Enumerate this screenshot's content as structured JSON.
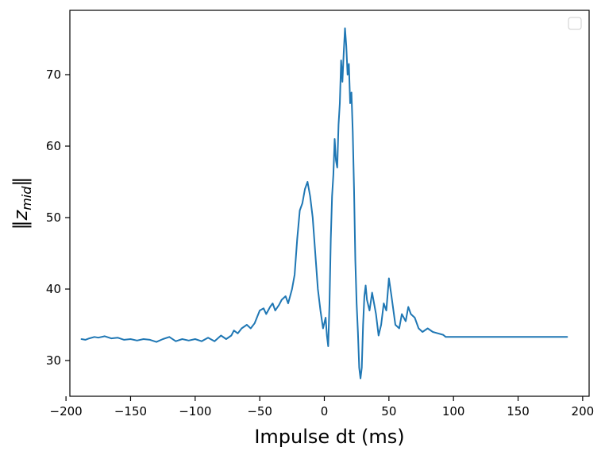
{
  "chart_data": {
    "type": "line",
    "title": "",
    "xlabel": "Impulse dt (ms)",
    "ylabel_main": "z",
    "ylabel_sub": "mid",
    "xlim": [
      -197,
      205
    ],
    "ylim": [
      25,
      79
    ],
    "xticks": [
      -200,
      -150,
      -100,
      -50,
      0,
      50,
      100,
      150,
      200
    ],
    "xtick_labels": [
      "−200",
      "−150",
      "−100",
      "−50",
      "0",
      "50",
      "100",
      "150",
      "200"
    ],
    "yticks": [
      30,
      40,
      50,
      60,
      70
    ],
    "ytick_labels": [
      "30",
      "40",
      "50",
      "60",
      "70"
    ],
    "grid": false,
    "legend": "top-right, empty",
    "line_color": "#1f77b4",
    "series": [
      {
        "x": [
          -188,
          -185,
          -182,
          -178,
          -175,
          -170,
          -165,
          -160,
          -155,
          -150,
          -145,
          -140,
          -135,
          -130,
          -125,
          -120,
          -115,
          -110,
          -105,
          -100,
          -95,
          -90,
          -85,
          -80,
          -76,
          -72,
          -70,
          -67,
          -64,
          -60,
          -57,
          -54,
          -50,
          -47,
          -45,
          -42,
          -40,
          -38,
          -35,
          -33,
          -30,
          -28,
          -25,
          -23,
          -21,
          -19,
          -17,
          -15,
          -13,
          -11,
          -9,
          -7,
          -5,
          -3,
          -1,
          1,
          2,
          3,
          4,
          5,
          6,
          7,
          8,
          9,
          10,
          11,
          12,
          13,
          14,
          15,
          16,
          17,
          18,
          19,
          20,
          21,
          22,
          23,
          24,
          25,
          26,
          27,
          28,
          29,
          30,
          31,
          32,
          33,
          35,
          37,
          40,
          42,
          44,
          46,
          48,
          50,
          52,
          55,
          58,
          60,
          63,
          65,
          67,
          70,
          73,
          76,
          80,
          84,
          88,
          92,
          94,
          96,
          100,
          120,
          150,
          170,
          188
        ],
        "y": [
          33.0,
          32.9,
          33.1,
          33.3,
          33.2,
          33.4,
          33.1,
          33.2,
          32.9,
          33.0,
          32.8,
          33.0,
          32.9,
          32.6,
          33.0,
          33.3,
          32.7,
          33.0,
          32.8,
          33.0,
          32.7,
          33.2,
          32.7,
          33.5,
          33.0,
          33.5,
          34.2,
          33.8,
          34.5,
          35.0,
          34.5,
          35.2,
          37.0,
          37.3,
          36.5,
          37.5,
          38.0,
          37.0,
          37.8,
          38.5,
          39.0,
          38.0,
          40.0,
          42.0,
          47.0,
          51.0,
          52.0,
          54.0,
          55.0,
          53.0,
          50.0,
          45.0,
          40.0,
          37.0,
          34.5,
          36.0,
          33.5,
          32.0,
          38.0,
          47.0,
          53.0,
          56.0,
          61.0,
          58.0,
          57.0,
          63.0,
          66.0,
          72.0,
          69.0,
          73.0,
          76.5,
          74.0,
          70.0,
          71.5,
          66.0,
          67.5,
          62.0,
          54.0,
          44.0,
          38.0,
          34.0,
          29.0,
          27.5,
          29.0,
          35.0,
          39.0,
          40.5,
          38.5,
          37.0,
          39.5,
          36.5,
          33.5,
          35.0,
          38.0,
          37.0,
          41.5,
          39.0,
          35.0,
          34.5,
          36.5,
          35.5,
          37.5,
          36.5,
          36.0,
          34.5,
          34.0,
          34.5,
          34.0,
          33.8,
          33.6,
          33.3,
          33.3,
          33.3,
          33.3,
          33.3,
          33.3,
          33.3
        ]
      }
    ]
  }
}
